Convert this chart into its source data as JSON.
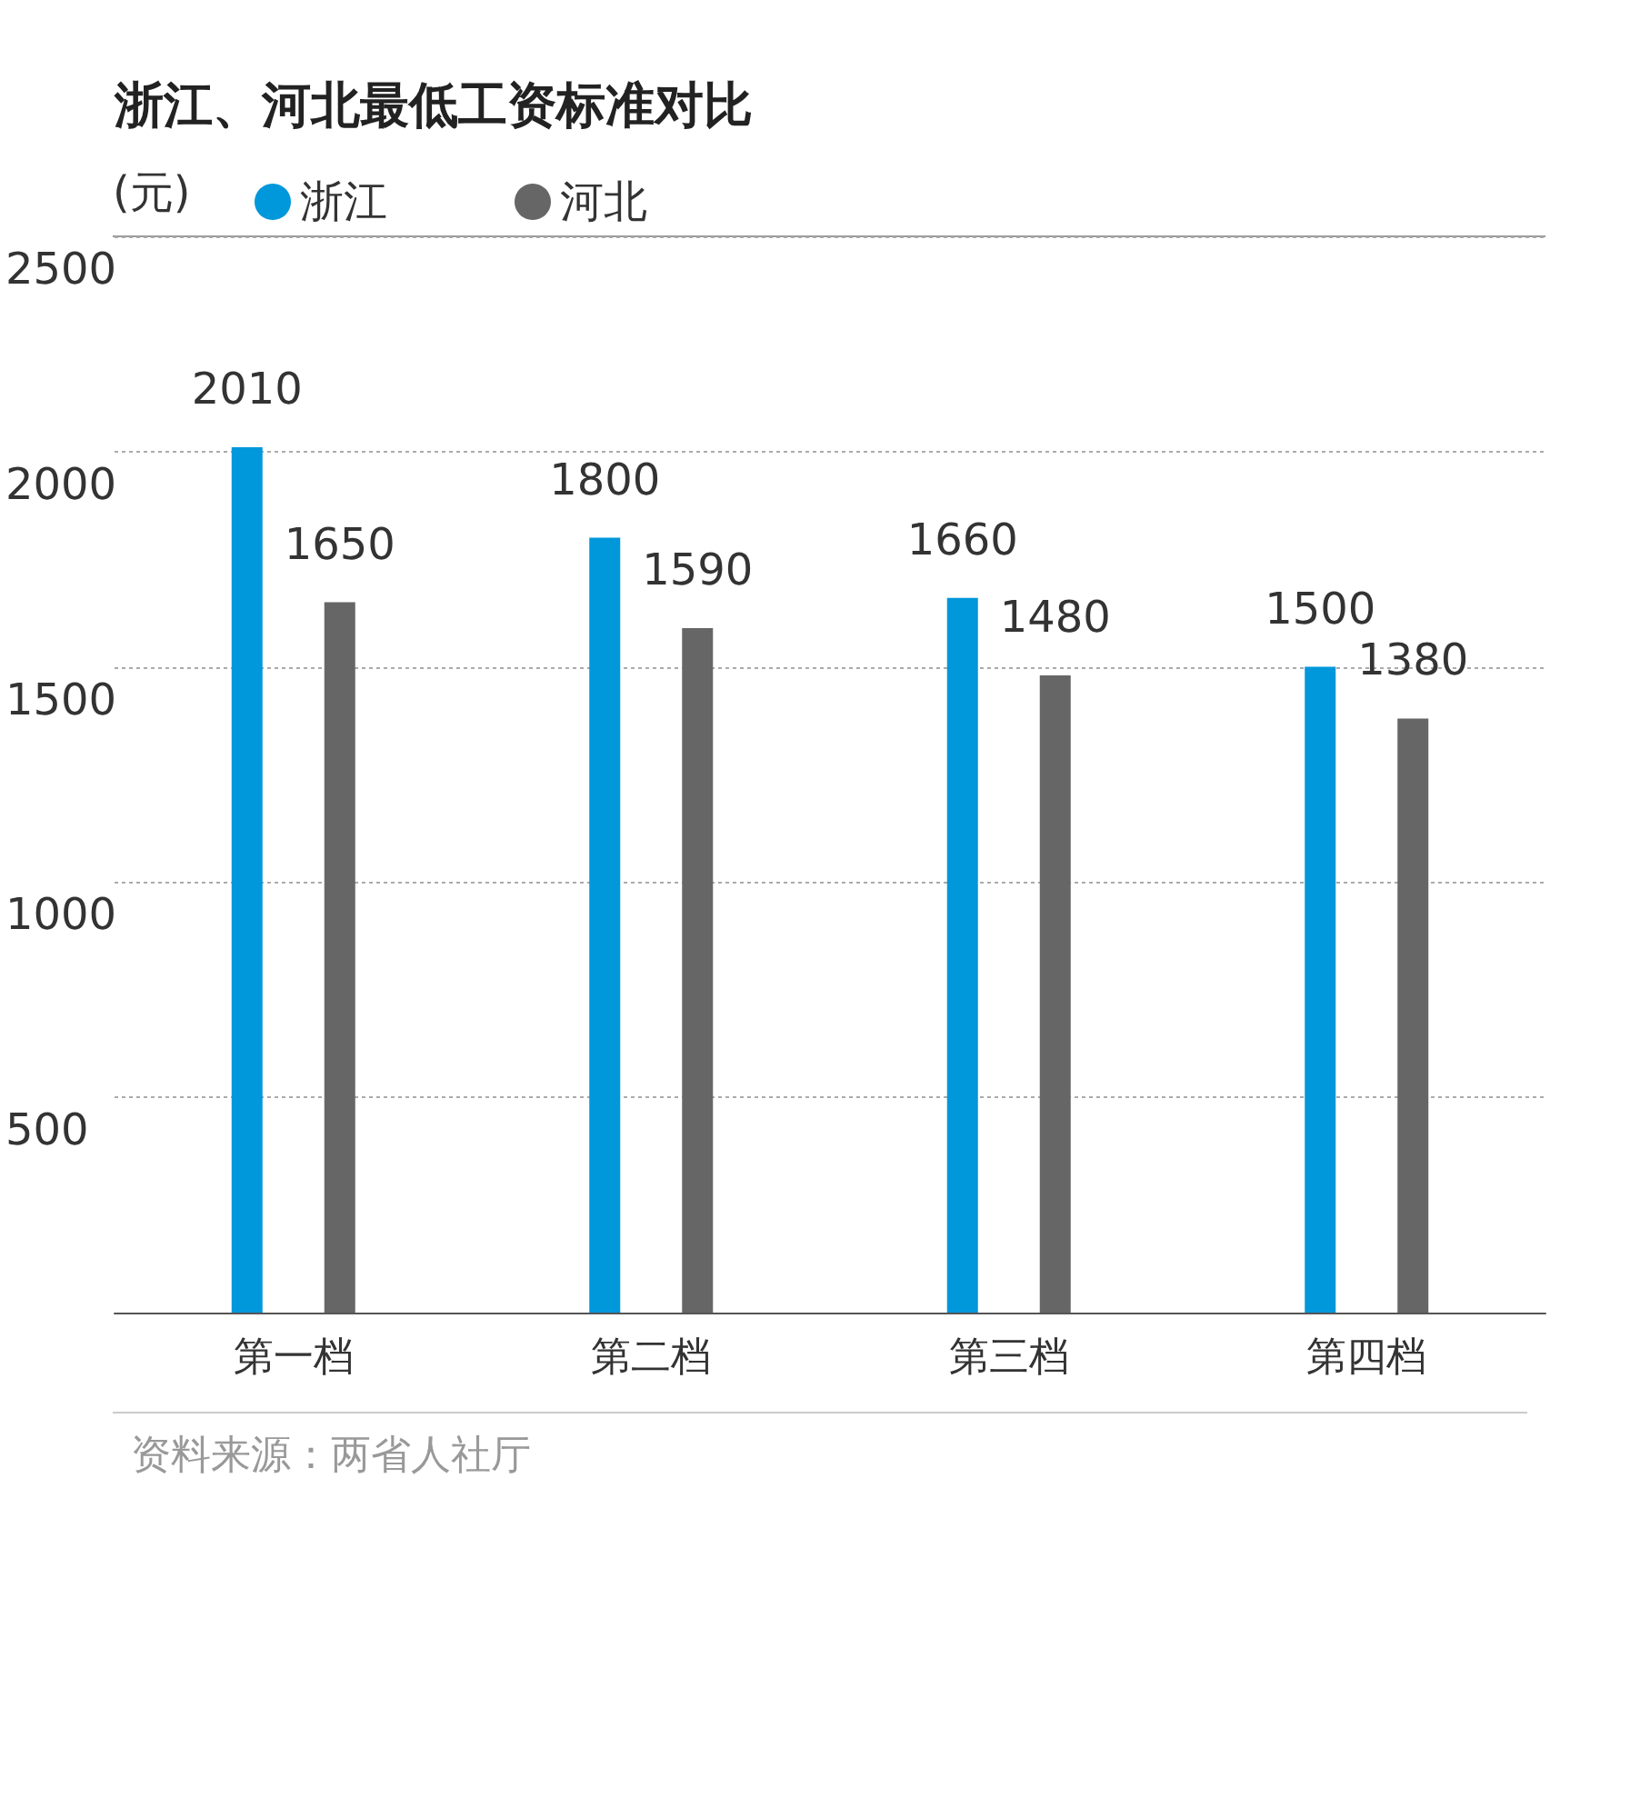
{
  "chart_data": {
    "type": "bar",
    "title": "浙江、河北最低工资标准对比",
    "ylabel": "(元)",
    "categories": [
      "第一档",
      "第二档",
      "第三档",
      "第四档"
    ],
    "series": [
      {
        "name": "浙江",
        "color": "#0097db",
        "values": [
          2010,
          1800,
          1660,
          1500
        ]
      },
      {
        "name": "河北",
        "color": "#666666",
        "values": [
          1650,
          1590,
          1480,
          1380
        ]
      }
    ],
    "ylim": [
      0,
      2500
    ],
    "yticks": [
      {
        "value": 0,
        "label": null
      },
      500,
      1000,
      1500,
      2000,
      2500
    ],
    "grid": "y",
    "legend": "top left",
    "data_labels": true,
    "annotations": [
      "资料来源：两省人社厅"
    ]
  }
}
